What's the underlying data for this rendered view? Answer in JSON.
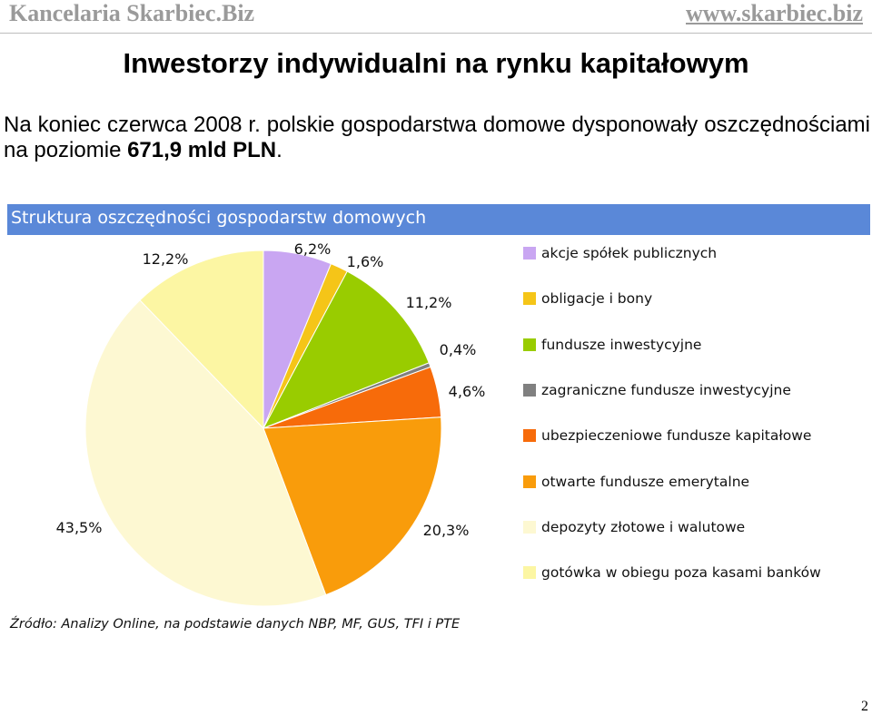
{
  "header": {
    "left": "Kancelaria Skarbiec.Biz",
    "right": "www.skarbiec.biz"
  },
  "title": "Inwestorzy indywidualni na rynku kapitałowym",
  "intro": {
    "text": "Na koniec czerwca 2008 r. polskie gospodarstwa domowe dysponowały oszczędnościami na poziomie ",
    "amount": "671,9 mld PLN",
    "suffix": "."
  },
  "source": "Źródło: Analizy Online, na podstawie danych NBP, MF, GUS, TFI i PTE",
  "page_number": "2",
  "chart_data": {
    "type": "pie",
    "title": "Struktura oszczędności gospodarstw domowych",
    "title_bar_color": "#5a88d8",
    "legend_placement": "right",
    "series": [
      {
        "name": "akcje spółek publicznych",
        "value": 6.2,
        "label": "6,2%",
        "color": "#c9a6f2"
      },
      {
        "name": "obligacje i bony",
        "value": 1.6,
        "label": "1,6%",
        "color": "#f5c518"
      },
      {
        "name": "fundusze inwestycyjne",
        "value": 11.2,
        "label": "11,2%",
        "color": "#99cc00"
      },
      {
        "name": "zagraniczne fundusze inwestycyjne",
        "value": 0.4,
        "label": "0,4%",
        "color": "#808080"
      },
      {
        "name": "ubezpieczeniowe fundusze kapitałowe",
        "value": 4.6,
        "label": "4,6%",
        "color": "#f76b0a"
      },
      {
        "name": "otwarte fundusze emerytalne",
        "value": 20.3,
        "label": "20,3%",
        "color": "#f99c0b"
      },
      {
        "name": "depozyty złotowe i walutowe",
        "value": 43.5,
        "label": "43,5%",
        "color": "#fdf8d2"
      },
      {
        "name": "gotówka w obiegu poza kasami banków",
        "value": 12.2,
        "label": "12,2%",
        "color": "#fcf6a3"
      }
    ]
  }
}
